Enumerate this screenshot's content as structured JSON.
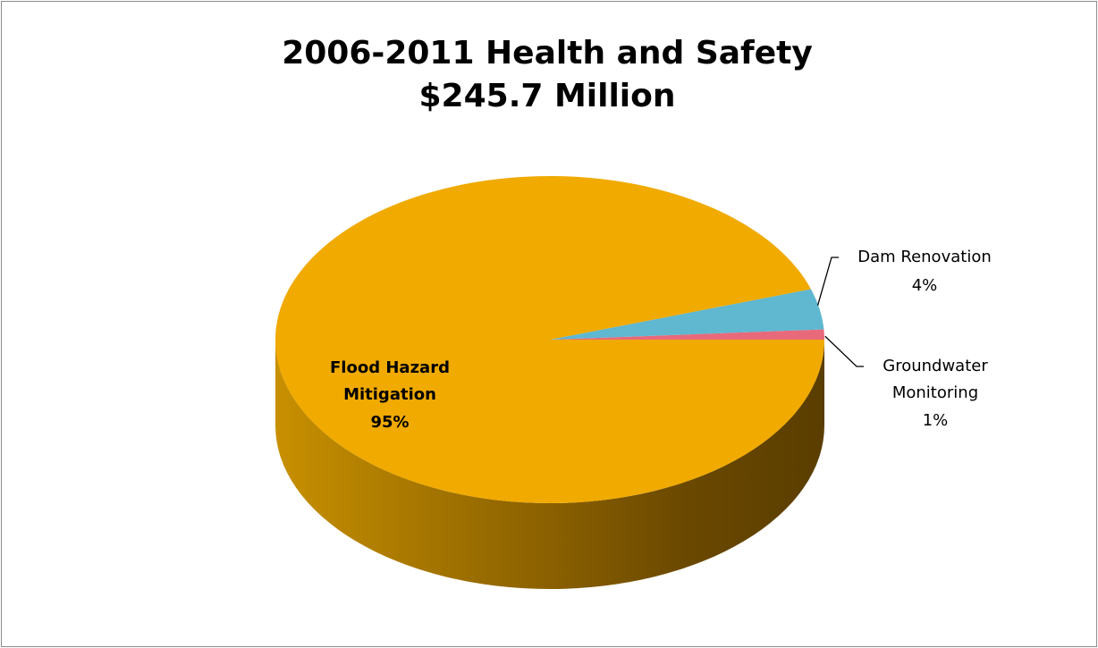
{
  "chart_data": {
    "type": "pie",
    "title": "2006-2011 Health and Safety",
    "subtitle": "$245.7 Million",
    "slices": [
      {
        "name": "Flood Hazard Mitigation",
        "label_lines": [
          "Flood Hazard",
          "Mitigation"
        ],
        "percent_label": "95%",
        "value": 95,
        "color": "#F0AA00"
      },
      {
        "name": "Dam Renovation",
        "label_lines": [
          "Dam Renovation"
        ],
        "percent_label": "4%",
        "value": 4,
        "color": "#5FB7D0"
      },
      {
        "name": "Groundwater Monitoring",
        "label_lines": [
          "Groundwater",
          "Monitoring"
        ],
        "percent_label": "1%",
        "value": 1,
        "color": "#E8697A"
      }
    ],
    "style": "3d",
    "legend": "none"
  }
}
